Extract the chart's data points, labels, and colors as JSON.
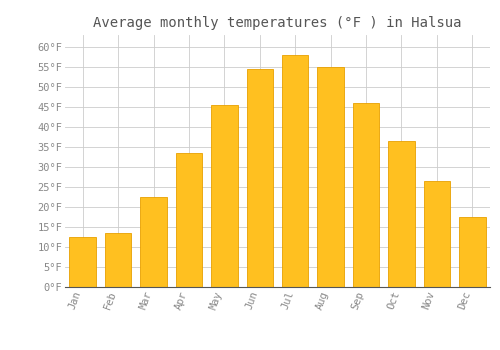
{
  "title": "Average monthly temperatures (°F ) in Halsua",
  "months": [
    "Jan",
    "Feb",
    "Mar",
    "Apr",
    "May",
    "Jun",
    "Jul",
    "Aug",
    "Sep",
    "Oct",
    "Nov",
    "Dec"
  ],
  "values": [
    12.5,
    13.5,
    22.5,
    33.5,
    45.5,
    54.5,
    58.0,
    55.0,
    46.0,
    36.5,
    26.5,
    17.5
  ],
  "bar_color": "#FFC020",
  "bar_edge_color": "#E8A000",
  "background_color": "#FFFFFF",
  "grid_color": "#CCCCCC",
  "text_color": "#888888",
  "ylim": [
    0,
    63
  ],
  "yticks": [
    0,
    5,
    10,
    15,
    20,
    25,
    30,
    35,
    40,
    45,
    50,
    55,
    60
  ],
  "title_fontsize": 10,
  "tick_fontsize": 7.5
}
